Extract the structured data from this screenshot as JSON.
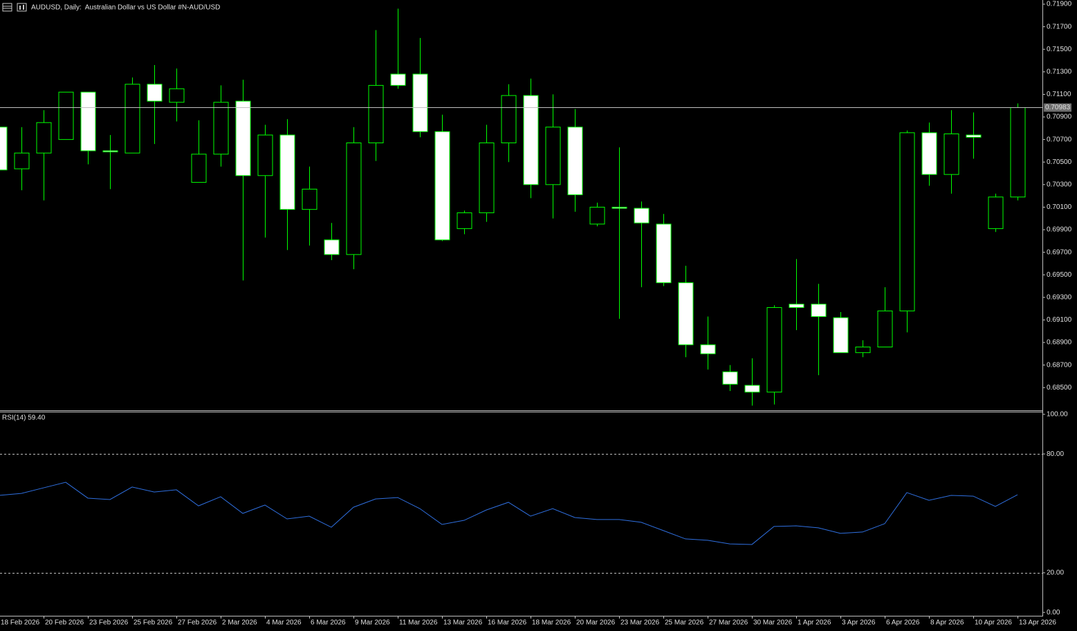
{
  "chart_data": [
    {
      "type": "candlestick",
      "title": "AUDUSD, Daily:  Australian Dollar vs US Dollar #N-AUD/USD",
      "categories": [
        "18 Feb 2026",
        null,
        "20 Feb 2026",
        null,
        "23 Feb 2026",
        null,
        "25 Feb 2026",
        null,
        "27 Feb 2026",
        null,
        "2 Mar 2026",
        null,
        "4 Mar 2026",
        null,
        "6 Mar 2026",
        null,
        "9 Mar 2026",
        null,
        "11 Mar 2026",
        null,
        "13 Mar 2026",
        null,
        "16 Mar 2026",
        null,
        "18 Mar 2026",
        null,
        "20 Mar 2026",
        null,
        "23 Mar 2026",
        null,
        "25 Mar 2026",
        null,
        "27 Mar 2026",
        null,
        "30 Mar 2026",
        null,
        "1 Apr 2026",
        null,
        "3 Apr 2026",
        null,
        "6 Apr 2026",
        null,
        "8 Apr 2026",
        null,
        "10 Apr 2026",
        null,
        "13 Apr 2026"
      ],
      "open": [
        0.7081,
        0.7044,
        0.7058,
        0.707,
        0.7112,
        0.706,
        0.7058,
        0.7119,
        0.7103,
        0.7032,
        0.7057,
        0.7104,
        0.7038,
        0.7074,
        0.7008,
        0.6981,
        0.6968,
        0.7067,
        0.7128,
        0.7128,
        0.7077,
        0.6991,
        0.7005,
        0.7067,
        0.7109,
        0.703,
        0.7081,
        0.6995,
        0.701,
        0.7009,
        0.6995,
        0.6943,
        0.6888,
        0.6864,
        0.6852,
        0.6846,
        0.6924,
        0.6924,
        0.6912,
        0.6881,
        0.6886,
        0.6918,
        0.7076,
        0.7039,
        0.7074,
        0.6991,
        0.7019
      ],
      "high": [
        0.7089,
        0.7081,
        0.7096,
        0.7112,
        0.7112,
        0.7074,
        0.7125,
        0.7136,
        0.7133,
        0.7087,
        0.7118,
        0.7123,
        0.7083,
        0.7088,
        0.7046,
        0.6996,
        0.7081,
        0.7167,
        0.7186,
        0.716,
        0.7092,
        0.7007,
        0.7083,
        0.7119,
        0.7124,
        0.711,
        0.7097,
        0.7014,
        0.7063,
        0.7015,
        0.7004,
        0.6958,
        0.6913,
        0.687,
        0.6876,
        0.6923,
        0.6964,
        0.6942,
        0.6917,
        0.6892,
        0.6939,
        0.7078,
        0.7085,
        0.7096,
        0.7094,
        0.7022,
        0.7102
      ],
      "low": [
        0.7037,
        0.7025,
        0.7016,
        0.707,
        0.7048,
        0.7026,
        0.7058,
        0.7066,
        0.7086,
        0.7032,
        0.7046,
        0.6945,
        0.6983,
        0.6972,
        0.6976,
        0.6963,
        0.6955,
        0.7051,
        0.7115,
        0.7072,
        0.698,
        0.6986,
        0.6997,
        0.705,
        0.7018,
        0.7,
        0.7006,
        0.6993,
        0.6911,
        0.6939,
        0.694,
        0.6877,
        0.6866,
        0.6847,
        0.6834,
        0.6835,
        0.6901,
        0.6861,
        0.6881,
        0.6877,
        0.6886,
        0.6899,
        0.7029,
        0.7022,
        0.7053,
        0.6988,
        0.7016
      ],
      "close": [
        0.7043,
        0.7058,
        0.7085,
        0.7112,
        0.706,
        0.7059,
        0.7119,
        0.7104,
        0.7115,
        0.7057,
        0.7103,
        0.7038,
        0.7074,
        0.7008,
        0.7026,
        0.6968,
        0.7067,
        0.7118,
        0.7118,
        0.7077,
        0.6981,
        0.7005,
        0.7067,
        0.7109,
        0.703,
        0.7081,
        0.7021,
        0.701,
        0.7009,
        0.6996,
        0.6943,
        0.6888,
        0.688,
        0.6853,
        0.6846,
        0.6921,
        0.6921,
        0.6913,
        0.6881,
        0.6886,
        0.6918,
        0.7076,
        0.7039,
        0.7075,
        0.7072,
        0.7019,
        0.70983
      ],
      "up_color": "#000000",
      "down_color": "#ffffff",
      "outline_color": "#00ff00",
      "price_line_color": "#c0c0c0",
      "ylim": [
        0.68305,
        0.71937
      ],
      "yticks": [
        {
          "value": 0.719,
          "label": "0.71900"
        },
        {
          "value": 0.717,
          "label": "0.71700"
        },
        {
          "value": 0.715,
          "label": "0.71500"
        },
        {
          "value": 0.713,
          "label": "0.71300"
        },
        {
          "value": 0.711,
          "label": "0.71100"
        },
        {
          "value": 0.709,
          "label": "0.70900"
        },
        {
          "value": 0.707,
          "label": "0.70700"
        },
        {
          "value": 0.705,
          "label": "0.70500"
        },
        {
          "value": 0.703,
          "label": "0.70300"
        },
        {
          "value": 0.701,
          "label": "0.70100"
        },
        {
          "value": 0.699,
          "label": "0.69900"
        },
        {
          "value": 0.697,
          "label": "0.69700"
        },
        {
          "value": 0.695,
          "label": "0.69500"
        },
        {
          "value": 0.693,
          "label": "0.69300"
        },
        {
          "value": 0.691,
          "label": "0.69100"
        },
        {
          "value": 0.689,
          "label": "0.68900"
        },
        {
          "value": 0.687,
          "label": "0.68700"
        },
        {
          "value": 0.685,
          "label": "0.68500"
        }
      ]
    },
    {
      "type": "line",
      "title": "RSI(14) 59.40",
      "values": [
        59.1,
        60.1,
        62.9,
        65.7,
        57.7,
        57.0,
        63.3,
        60.8,
        61.9,
        53.8,
        58.4,
        50.0,
        54.2,
        47.2,
        48.6,
        43.0,
        53.1,
        57.3,
        58.0,
        52.4,
        44.4,
        46.5,
        51.7,
        55.6,
        48.6,
        52.4,
        47.9,
        46.9,
        46.9,
        45.5,
        41.3,
        37.1,
        36.4,
        34.6,
        34.3,
        43.4,
        43.7,
        42.7,
        39.9,
        40.6,
        44.8,
        60.5,
        56.6,
        59.1,
        58.7,
        53.5,
        59.4
      ],
      "color": "#2f6fdf",
      "ylim": [
        -1.7,
        101
      ],
      "yticks": [
        {
          "value": 100,
          "label": "100.00"
        },
        {
          "value": 80,
          "label": "80.00"
        },
        {
          "value": 20,
          "label": "20.00"
        },
        {
          "value": 0,
          "label": "0.00"
        }
      ],
      "levels": [
        80,
        20
      ]
    }
  ]
}
